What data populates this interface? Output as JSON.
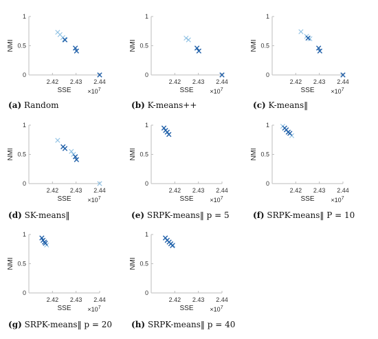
{
  "figure": {
    "panels": [
      {
        "label": "a",
        "caption": "Random"
      },
      {
        "label": "b",
        "caption": "K-means++"
      },
      {
        "label": "c",
        "caption": "K-means‖"
      },
      {
        "label": "d",
        "caption": "SK-means‖"
      },
      {
        "label": "e",
        "caption": "SRPK-means‖ p = 5"
      },
      {
        "label": "f",
        "caption": "SRPK-means‖ P = 10"
      },
      {
        "label": "g",
        "caption": "SRPK-means‖ p = 20"
      },
      {
        "label": "h",
        "caption": "SRPK-means‖ p = 40"
      }
    ]
  },
  "chart_data": [
    {
      "type": "scatter",
      "xlabel": "SSE",
      "ylabel": "NMI",
      "x_multiplier": "×10^7",
      "xlim": [
        2.41,
        2.44
      ],
      "ylim": [
        0,
        1
      ],
      "xticks": [
        "2.42",
        "2.43",
        "2.44"
      ],
      "yticks": [
        "0",
        "0.5",
        "1"
      ],
      "colors": {
        "dark": "#1f5fa8",
        "light": "#8fc1e3"
      },
      "series": [
        {
          "shade": "light",
          "points": [
            [
              2.4222,
              0.73
            ],
            [
              2.4232,
              0.69
            ],
            [
              2.4244,
              0.64
            ],
            [
              2.4251,
              0.61
            ]
          ]
        },
        {
          "shade": "dark",
          "points": [
            [
              2.4253,
              0.6
            ],
            [
              2.4297,
              0.46
            ],
            [
              2.4302,
              0.41
            ],
            [
              2.44,
              0.0
            ]
          ]
        }
      ]
    },
    {
      "type": "scatter",
      "xlabel": "SSE",
      "ylabel": "NMI",
      "x_multiplier": "×10^7",
      "xlim": [
        2.41,
        2.44
      ],
      "ylim": [
        0,
        1
      ],
      "xticks": [
        "2.42",
        "2.43",
        "2.44"
      ],
      "yticks": [
        "0",
        "0.5",
        "1"
      ],
      "colors": {
        "dark": "#1f5fa8",
        "light": "#8fc1e3"
      },
      "series": [
        {
          "shade": "light",
          "points": [
            [
              2.4248,
              0.63
            ],
            [
              2.4258,
              0.6
            ]
          ]
        },
        {
          "shade": "dark",
          "points": [
            [
              2.4294,
              0.46
            ],
            [
              2.4302,
              0.41
            ],
            [
              2.44,
              0.0
            ]
          ]
        }
      ]
    },
    {
      "type": "scatter",
      "xlabel": "SSE",
      "ylabel": "NMI",
      "x_multiplier": "×10^7",
      "xlim": [
        2.41,
        2.44
      ],
      "ylim": [
        0,
        1
      ],
      "xticks": [
        "2.42",
        "2.43",
        "2.44"
      ],
      "yticks": [
        "0",
        "0.5",
        "1"
      ],
      "colors": {
        "dark": "#1f5fa8",
        "light": "#8fc1e3"
      },
      "series": [
        {
          "shade": "light",
          "points": [
            [
              2.4222,
              0.74
            ],
            [
              2.4246,
              0.66
            ],
            [
              2.426,
              0.62
            ]
          ]
        },
        {
          "shade": "dark",
          "points": [
            [
              2.4252,
              0.63
            ],
            [
              2.4297,
              0.46
            ],
            [
              2.4302,
              0.41
            ],
            [
              2.44,
              0.0
            ]
          ]
        }
      ]
    },
    {
      "type": "scatter",
      "xlabel": "SSE",
      "ylabel": "NMI",
      "x_multiplier": "×10^7",
      "xlim": [
        2.41,
        2.44
      ],
      "ylim": [
        0,
        1
      ],
      "xticks": [
        "2.42",
        "2.43",
        "2.44"
      ],
      "yticks": [
        "0",
        "0.5",
        "1"
      ],
      "colors": {
        "dark": "#1f5fa8",
        "light": "#8fc1e3"
      },
      "series": [
        {
          "shade": "light",
          "points": [
            [
              2.4222,
              0.74
            ],
            [
              2.428,
              0.55
            ],
            [
              2.4289,
              0.5
            ],
            [
              2.44,
              0.0
            ]
          ]
        },
        {
          "shade": "dark",
          "points": [
            [
              2.4245,
              0.63
            ],
            [
              2.4253,
              0.6
            ],
            [
              2.4297,
              0.46
            ],
            [
              2.4302,
              0.41
            ]
          ]
        }
      ]
    },
    {
      "type": "scatter",
      "xlabel": "SSE",
      "ylabel": "NMI",
      "x_multiplier": "×10^7",
      "xlim": [
        2.41,
        2.44
      ],
      "ylim": [
        0,
        1
      ],
      "xticks": [
        "2.42",
        "2.43",
        "2.44"
      ],
      "yticks": [
        "0",
        "0.5",
        "1"
      ],
      "colors": {
        "dark": "#1f5fa8",
        "light": "#8fc1e3"
      },
      "series": [
        {
          "shade": "dark",
          "points": [
            [
              2.4154,
              0.95
            ],
            [
              2.4161,
              0.91
            ],
            [
              2.4168,
              0.88
            ],
            [
              2.4175,
              0.84
            ]
          ]
        }
      ]
    },
    {
      "type": "scatter",
      "xlabel": "SSE",
      "ylabel": "NMI",
      "x_multiplier": "×10^7",
      "xlim": [
        2.41,
        2.44
      ],
      "ylim": [
        0,
        1
      ],
      "xticks": [
        "2.42",
        "2.43",
        "2.44"
      ],
      "yticks": [
        "0",
        "0.5",
        "1"
      ],
      "colors": {
        "dark": "#1f5fa8",
        "light": "#8fc1e3"
      },
      "series": [
        {
          "shade": "light",
          "points": [
            [
              2.4145,
              0.98
            ],
            [
              2.4183,
              0.82
            ]
          ]
        },
        {
          "shade": "dark",
          "points": [
            [
              2.4153,
              0.95
            ],
            [
              2.416,
              0.92
            ],
            [
              2.4168,
              0.88
            ],
            [
              2.4175,
              0.86
            ]
          ]
        }
      ]
    },
    {
      "type": "scatter",
      "xlabel": "SSE",
      "ylabel": "NMI",
      "x_multiplier": "×10^7",
      "xlim": [
        2.41,
        2.44
      ],
      "ylim": [
        0,
        1
      ],
      "xticks": [
        "2.42",
        "2.43",
        "2.44"
      ],
      "yticks": [
        "0",
        "0.5",
        "1"
      ],
      "colors": {
        "dark": "#1f5fa8",
        "light": "#8fc1e3"
      },
      "series": [
        {
          "shade": "light",
          "points": [
            [
              2.4175,
              0.82
            ]
          ]
        },
        {
          "shade": "dark",
          "points": [
            [
              2.4155,
              0.94
            ],
            [
              2.416,
              0.9
            ],
            [
              2.4166,
              0.87
            ],
            [
              2.417,
              0.85
            ]
          ]
        }
      ]
    },
    {
      "type": "scatter",
      "xlabel": "SSE",
      "ylabel": "NMI",
      "x_multiplier": "×10^7",
      "xlim": [
        2.41,
        2.44
      ],
      "ylim": [
        0,
        1
      ],
      "xticks": [
        "2.42",
        "2.43",
        "2.44"
      ],
      "yticks": [
        "0",
        "0.5",
        "1"
      ],
      "colors": {
        "dark": "#1f5fa8",
        "light": "#8fc1e3"
      },
      "series": [
        {
          "shade": "light",
          "points": [
            [
              2.4192,
              0.82
            ]
          ]
        },
        {
          "shade": "dark",
          "points": [
            [
              2.416,
              0.94
            ],
            [
              2.4168,
              0.9
            ],
            [
              2.4176,
              0.87
            ],
            [
              2.4183,
              0.84
            ],
            [
              2.419,
              0.81
            ]
          ]
        }
      ]
    }
  ]
}
